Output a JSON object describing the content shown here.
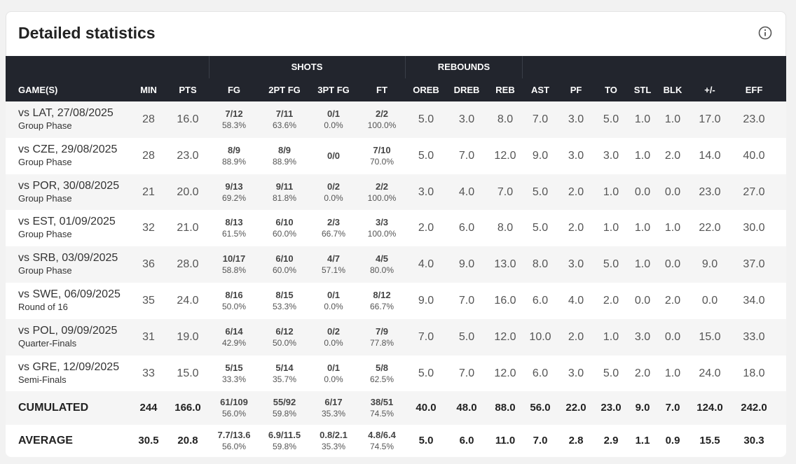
{
  "header": {
    "title": "Detailed statistics"
  },
  "table": {
    "groups": [
      "SHOTS",
      "REBOUNDS"
    ],
    "columns": [
      "GAME(S)",
      "MIN",
      "PTS",
      "FG",
      "2PT FG",
      "3PT FG",
      "FT",
      "OREB",
      "DREB",
      "REB",
      "AST",
      "PF",
      "TO",
      "STL",
      "BLK",
      "+/-",
      "EFF"
    ],
    "rows": [
      {
        "game": "vs LAT, 27/08/2025",
        "phase": "Group Phase",
        "cells": [
          "28",
          "16.0",
          [
            "7/12",
            "58.3%"
          ],
          [
            "7/11",
            "63.6%"
          ],
          [
            "0/1",
            "0.0%"
          ],
          [
            "2/2",
            "100.0%"
          ],
          "5.0",
          "3.0",
          "8.0",
          "7.0",
          "3.0",
          "5.0",
          "1.0",
          "1.0",
          "17.0",
          "23.0"
        ]
      },
      {
        "game": "vs CZE, 29/08/2025",
        "phase": "Group Phase",
        "cells": [
          "28",
          "23.0",
          [
            "8/9",
            "88.9%"
          ],
          [
            "8/9",
            "88.9%"
          ],
          [
            "0/0"
          ],
          [
            "7/10",
            "70.0%"
          ],
          "5.0",
          "7.0",
          "12.0",
          "9.0",
          "3.0",
          "3.0",
          "1.0",
          "2.0",
          "14.0",
          "40.0"
        ]
      },
      {
        "game": "vs POR, 30/08/2025",
        "phase": "Group Phase",
        "cells": [
          "21",
          "20.0",
          [
            "9/13",
            "69.2%"
          ],
          [
            "9/11",
            "81.8%"
          ],
          [
            "0/2",
            "0.0%"
          ],
          [
            "2/2",
            "100.0%"
          ],
          "3.0",
          "4.0",
          "7.0",
          "5.0",
          "2.0",
          "1.0",
          "0.0",
          "0.0",
          "23.0",
          "27.0"
        ]
      },
      {
        "game": "vs EST, 01/09/2025",
        "phase": "Group Phase",
        "cells": [
          "32",
          "21.0",
          [
            "8/13",
            "61.5%"
          ],
          [
            "6/10",
            "60.0%"
          ],
          [
            "2/3",
            "66.7%"
          ],
          [
            "3/3",
            "100.0%"
          ],
          "2.0",
          "6.0",
          "8.0",
          "5.0",
          "2.0",
          "1.0",
          "1.0",
          "1.0",
          "22.0",
          "30.0"
        ]
      },
      {
        "game": "vs SRB, 03/09/2025",
        "phase": "Group Phase",
        "cells": [
          "36",
          "28.0",
          [
            "10/17",
            "58.8%"
          ],
          [
            "6/10",
            "60.0%"
          ],
          [
            "4/7",
            "57.1%"
          ],
          [
            "4/5",
            "80.0%"
          ],
          "4.0",
          "9.0",
          "13.0",
          "8.0",
          "3.0",
          "5.0",
          "1.0",
          "0.0",
          "9.0",
          "37.0"
        ]
      },
      {
        "game": "vs SWE, 06/09/2025",
        "phase": "Round of 16",
        "cells": [
          "35",
          "24.0",
          [
            "8/16",
            "50.0%"
          ],
          [
            "8/15",
            "53.3%"
          ],
          [
            "0/1",
            "0.0%"
          ],
          [
            "8/12",
            "66.7%"
          ],
          "9.0",
          "7.0",
          "16.0",
          "6.0",
          "4.0",
          "2.0",
          "0.0",
          "2.0",
          "0.0",
          "34.0"
        ]
      },
      {
        "game": "vs POL, 09/09/2025",
        "phase": "Quarter-Finals",
        "cells": [
          "31",
          "19.0",
          [
            "6/14",
            "42.9%"
          ],
          [
            "6/12",
            "50.0%"
          ],
          [
            "0/2",
            "0.0%"
          ],
          [
            "7/9",
            "77.8%"
          ],
          "7.0",
          "5.0",
          "12.0",
          "10.0",
          "2.0",
          "1.0",
          "3.0",
          "0.0",
          "15.0",
          "33.0"
        ]
      },
      {
        "game": "vs GRE, 12/09/2025",
        "phase": "Semi-Finals",
        "cells": [
          "33",
          "15.0",
          [
            "5/15",
            "33.3%"
          ],
          [
            "5/14",
            "35.7%"
          ],
          [
            "0/1",
            "0.0%"
          ],
          [
            "5/8",
            "62.5%"
          ],
          "5.0",
          "7.0",
          "12.0",
          "6.0",
          "3.0",
          "5.0",
          "2.0",
          "1.0",
          "24.0",
          "18.0"
        ]
      }
    ],
    "totals": [
      {
        "label": "CUMULATED",
        "cells": [
          "244",
          "166.0",
          [
            "61/109",
            "56.0%"
          ],
          [
            "55/92",
            "59.8%"
          ],
          [
            "6/17",
            "35.3%"
          ],
          [
            "38/51",
            "74.5%"
          ],
          "40.0",
          "48.0",
          "88.0",
          "56.0",
          "22.0",
          "23.0",
          "9.0",
          "7.0",
          "124.0",
          "242.0"
        ]
      },
      {
        "label": "AVERAGE",
        "cells": [
          "30.5",
          "20.8",
          [
            "7.7/13.6",
            "56.0%"
          ],
          [
            "6.9/11.5",
            "59.8%"
          ],
          [
            "0.8/2.1",
            "35.3%"
          ],
          [
            "4.8/6.4",
            "74.5%"
          ],
          "5.0",
          "6.0",
          "11.0",
          "7.0",
          "2.8",
          "2.9",
          "1.1",
          "0.9",
          "15.5",
          "30.3"
        ]
      }
    ]
  }
}
